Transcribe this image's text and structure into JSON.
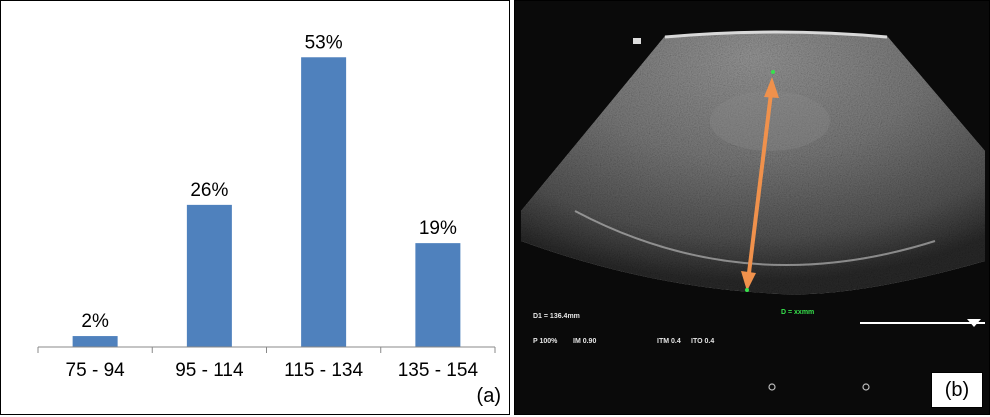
{
  "panel_a": {
    "label": "(a)",
    "chart_data": {
      "type": "bar",
      "categories": [
        "75 - 94",
        "95 - 114",
        "115 - 134",
        "135 - 154"
      ],
      "values": [
        2,
        26,
        53,
        19
      ],
      "data_labels": [
        "2%",
        "26%",
        "53%",
        "19%"
      ],
      "ylim": [
        0,
        60
      ],
      "grid": false,
      "bar_color": "#4F81BD"
    }
  },
  "panel_b": {
    "label": "(b)",
    "measurement": "D1 = 136.4mm",
    "distance_label": "D = xxmm",
    "power": "P 100%",
    "mi": "IM 0.90",
    "tim": "ITM 0.4",
    "tio": "ITO 0.4",
    "arrow_color": "#F0914C",
    "marker_color": "#37e24c"
  }
}
